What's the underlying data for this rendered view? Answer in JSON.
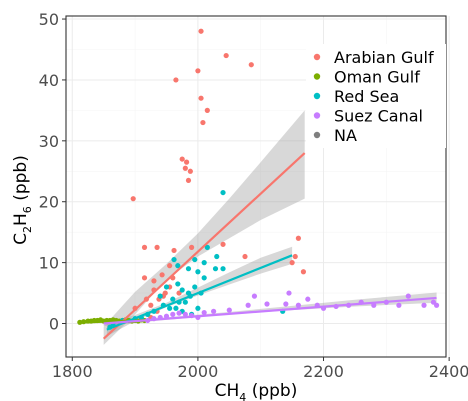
{
  "chart_data": {
    "type": "scatter",
    "title": "",
    "xlabel": {
      "main": "CH",
      "sub": "4",
      "rest": " (ppb)"
    },
    "ylabel": {
      "main": "C",
      "sub1": "2",
      "mid": "H",
      "sub2": "6",
      "rest": " (ppb)"
    },
    "xlim": [
      1790,
      2395
    ],
    "ylim": [
      -5.5,
      50.5
    ],
    "x_ticks": [
      1800,
      2000,
      2200,
      2400
    ],
    "y_ticks": [
      0,
      10,
      20,
      30,
      40,
      50
    ],
    "grid": true,
    "legend_position": "top-right",
    "series": [
      {
        "name": "Arabian Gulf",
        "color": "#F8766D",
        "points": [
          [
            2005,
            48
          ],
          [
            2045,
            44
          ],
          [
            1965,
            40
          ],
          [
            2000,
            41.5
          ],
          [
            2085,
            42.5
          ],
          [
            2005,
            37
          ],
          [
            2015,
            35
          ],
          [
            2008,
            33
          ],
          [
            1975,
            27
          ],
          [
            1982,
            26.5
          ],
          [
            1980,
            25.5
          ],
          [
            1988,
            25
          ],
          [
            1985,
            23.5
          ],
          [
            1897,
            20.5
          ],
          [
            1915,
            12.5
          ],
          [
            1935,
            12.5
          ],
          [
            1962,
            12
          ],
          [
            1990,
            12.5
          ],
          [
            2040,
            13
          ],
          [
            2075,
            11
          ],
          [
            2160,
            14
          ],
          [
            2155,
            11
          ],
          [
            2150,
            10
          ],
          [
            2168,
            8.5
          ],
          [
            1915,
            7.5
          ],
          [
            1930,
            7
          ],
          [
            1955,
            9.5
          ],
          [
            1943,
            8
          ],
          [
            1960,
            7.5
          ],
          [
            1930,
            5.5
          ],
          [
            1945,
            4.5
          ],
          [
            1955,
            6
          ],
          [
            1970,
            5
          ],
          [
            1918,
            4
          ],
          [
            1925,
            3
          ],
          [
            1938,
            4
          ],
          [
            1900,
            2.5
          ],
          [
            1948,
            5
          ],
          [
            1925,
            1
          ],
          [
            1935,
            2
          ]
        ],
        "fit": {
          "x0": 1850,
          "y0": -2.5,
          "x1": 2170,
          "y1": 28,
          "band": [
            [
              1850,
              -3.5,
              -0.5
            ],
            [
              1900,
              1.5,
              5.2
            ],
            [
              1950,
              7.2,
              9.8
            ],
            [
              2000,
              11.0,
              14.8
            ],
            [
              2050,
              14.0,
              20.5
            ],
            [
              2100,
              17.0,
              26.5
            ],
            [
              2170,
              20.5,
              35.0
            ]
          ]
        }
      },
      {
        "name": "Oman Gulf",
        "color": "#7CAE00",
        "points": [
          [
            1812,
            0.2
          ],
          [
            1818,
            0.3
          ],
          [
            1825,
            0.4
          ],
          [
            1830,
            0.4
          ],
          [
            1835,
            0.5
          ],
          [
            1840,
            0.5
          ],
          [
            1845,
            0.6
          ],
          [
            1850,
            0.4
          ],
          [
            1855,
            0.5
          ],
          [
            1860,
            0.5
          ],
          [
            1865,
            0.6
          ],
          [
            1870,
            0.5
          ],
          [
            1875,
            0.4
          ],
          [
            1880,
            0.5
          ],
          [
            1885,
            0.6
          ],
          [
            1890,
            0.5
          ],
          [
            1895,
            0.4
          ],
          [
            1900,
            0.5
          ],
          [
            1905,
            0.4
          ],
          [
            1910,
            0.6
          ],
          [
            1915,
            0.5
          ]
        ],
        "fit": {
          "x0": 1810,
          "y0": 0.15,
          "x1": 1915,
          "y1": 0.55,
          "band": [
            [
              1810,
              0.0,
              0.3
            ],
            [
              1860,
              0.35,
              0.55
            ],
            [
              1915,
              0.4,
              0.7
            ]
          ]
        }
      },
      {
        "name": "Red Sea",
        "color": "#00BFC4",
        "points": [
          [
            2040,
            21.5
          ],
          [
            2015,
            12.5
          ],
          [
            2030,
            11
          ],
          [
            1962,
            10.5
          ],
          [
            1995,
            10.5
          ],
          [
            2010,
            10
          ],
          [
            1968,
            9.5
          ],
          [
            1985,
            9
          ],
          [
            2028,
            9
          ],
          [
            2040,
            9
          ],
          [
            2000,
            8.5
          ],
          [
            2010,
            7.5
          ],
          [
            1950,
            6
          ],
          [
            1968,
            6.5
          ],
          [
            1975,
            5.5
          ],
          [
            1985,
            5
          ],
          [
            1995,
            6
          ],
          [
            2005,
            5
          ],
          [
            1940,
            4.5
          ],
          [
            1960,
            4
          ],
          [
            1970,
            3.5
          ],
          [
            1980,
            3.5
          ],
          [
            1988,
            4.5
          ],
          [
            1945,
            3
          ],
          [
            1955,
            2.5
          ],
          [
            1965,
            2.5
          ],
          [
            1975,
            2
          ],
          [
            1990,
            1.5
          ],
          [
            2000,
            2.5
          ],
          [
            1930,
            2
          ],
          [
            1920,
            1.5
          ],
          [
            1910,
            1
          ],
          [
            1900,
            0.8
          ],
          [
            1880,
            0.5
          ],
          [
            1865,
            0
          ],
          [
            1860,
            -0.6
          ],
          [
            2135,
            2
          ]
        ],
        "fit": {
          "x0": 1855,
          "y0": -1.0,
          "x1": 2150,
          "y1": 11.2,
          "band": [
            [
              1855,
              -2.1,
              0.1
            ],
            [
              1900,
              0.4,
              1.4
            ],
            [
              1950,
              2.7,
              3.4
            ],
            [
              2000,
              4.6,
              5.9
            ],
            [
              2050,
              6.4,
              8.4
            ],
            [
              2100,
              8.2,
              10.8
            ],
            [
              2150,
              9.8,
              12.6
            ]
          ]
        }
      },
      {
        "name": "Suez Canal",
        "color": "#C77CFF",
        "points": [
          [
            1920,
            0.5
          ],
          [
            1930,
            0.8
          ],
          [
            1940,
            1
          ],
          [
            1950,
            1.2
          ],
          [
            1960,
            1.5
          ],
          [
            1970,
            1.7
          ],
          [
            1980,
            1.5
          ],
          [
            1990,
            1.3
          ],
          [
            2000,
            1
          ],
          [
            2010,
            1.8
          ],
          [
            2025,
            2
          ],
          [
            2050,
            2.2
          ],
          [
            2080,
            3
          ],
          [
            2110,
            3.2
          ],
          [
            2140,
            3.2
          ],
          [
            2160,
            3
          ],
          [
            2175,
            4
          ],
          [
            2190,
            3
          ],
          [
            2200,
            2.5
          ],
          [
            2220,
            2.8
          ],
          [
            2240,
            3
          ],
          [
            2260,
            3.5
          ],
          [
            2280,
            3
          ],
          [
            2300,
            3.5
          ],
          [
            2320,
            3
          ],
          [
            2335,
            4.5
          ],
          [
            2360,
            3
          ],
          [
            2375,
            3.5
          ],
          [
            2380,
            3
          ],
          [
            2145,
            5
          ],
          [
            2090,
            4.5
          ]
        ],
        "fit": {
          "x0": 1850,
          "y0": 0.0,
          "x1": 2380,
          "y1": 4.2,
          "band": [
            [
              1850,
              -0.4,
              0.4
            ],
            [
              1950,
              0.6,
              1.0
            ],
            [
              2050,
              1.5,
              1.9
            ],
            [
              2150,
              2.2,
              2.9
            ],
            [
              2250,
              2.8,
              3.9
            ],
            [
              2380,
              3.4,
              5.1
            ]
          ]
        }
      },
      {
        "name": "NA",
        "color": "#7F7F7F",
        "points": [],
        "fit": null
      }
    ]
  }
}
